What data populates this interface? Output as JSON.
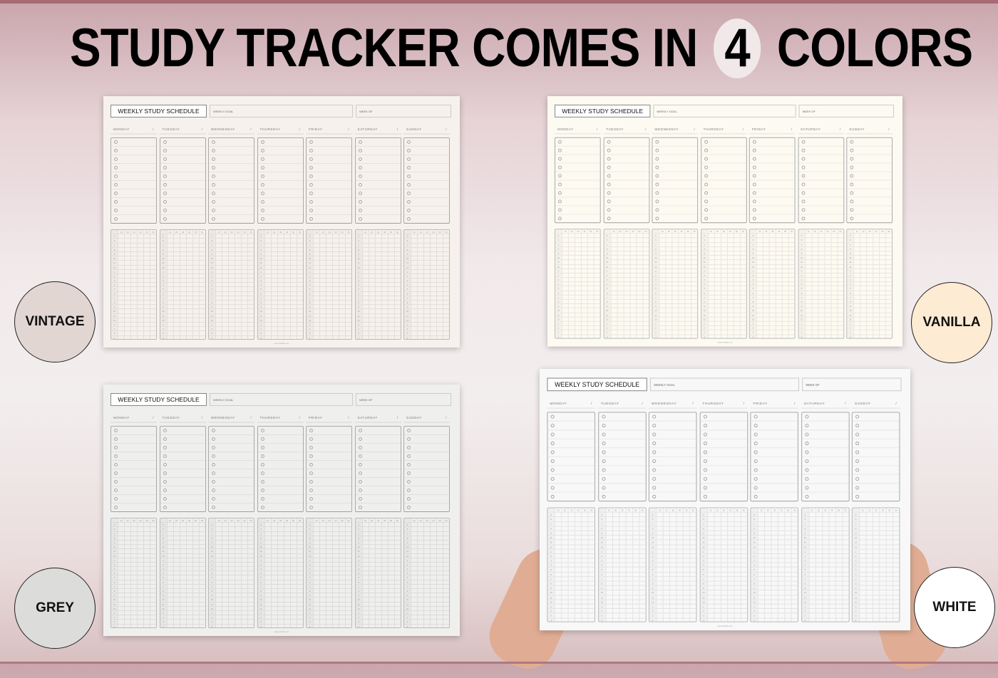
{
  "headline": {
    "before": "STUDY TRACKER COMES IN",
    "number": "4",
    "after": "COLORS"
  },
  "planner": {
    "title": "WEEKLY STUDY SCHEDULE",
    "goal_label": "WEEKLY GOAL",
    "week_label": "WEEK OF",
    "days": [
      "MONDAY",
      "TUESDAY",
      "WEDNESDAY",
      "THURSDAY",
      "FRIDAY",
      "SATURDAY",
      "SUNDAY"
    ],
    "slash": "/",
    "time_columns": [
      "10",
      "20",
      "30",
      "40",
      "50",
      "60"
    ],
    "hours": [
      "5",
      "6",
      "7",
      "8",
      "9",
      "10",
      "11",
      "12",
      "1",
      "2",
      "3",
      "4",
      "5",
      "6",
      "7",
      "8",
      "9",
      "10",
      "11",
      "12",
      "1",
      "2",
      "3",
      "4"
    ],
    "footer": "www.printable.com"
  },
  "variants": [
    {
      "name": "VINTAGE",
      "paper": "#f6f1ed",
      "swatch": "#e2d6d3"
    },
    {
      "name": "VANILLA",
      "paper": "#fdfaf2",
      "swatch": "#fdebd3"
    },
    {
      "name": "GREY",
      "paper": "#efefee",
      "swatch": "#dcdcda"
    },
    {
      "name": "WHITE",
      "paper": "#f8f8f8",
      "swatch": "#ffffff"
    }
  ]
}
